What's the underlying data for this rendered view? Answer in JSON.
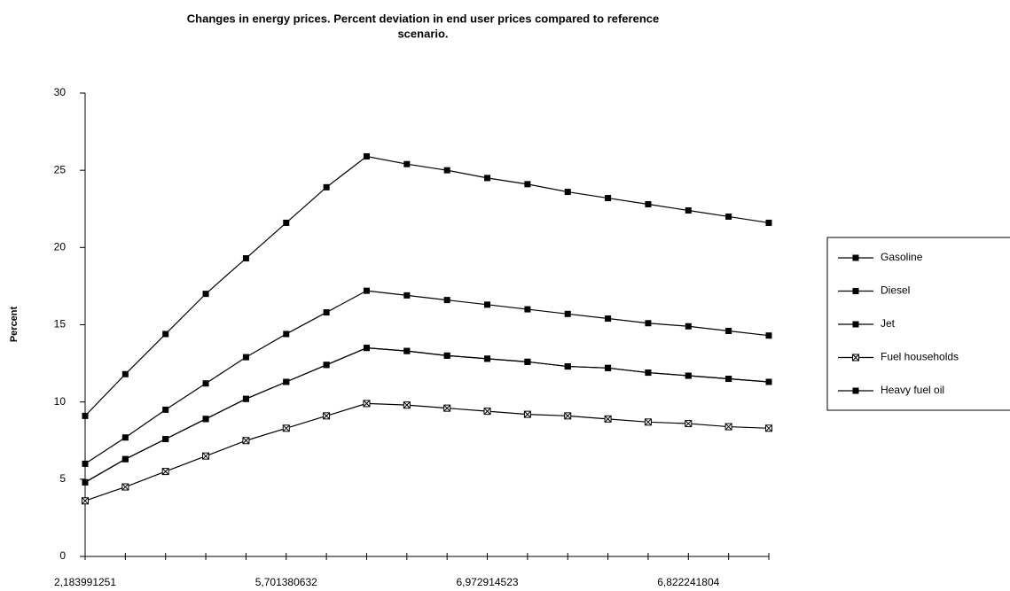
{
  "chart_data": {
    "type": "line",
    "title": [
      "Changes in energy prices. Percent deviation in end user prices compared to reference",
      "scenario."
    ],
    "y_label": "Percent",
    "categories": [
      "2,183991251",
      null,
      null,
      null,
      null,
      "5,701380632",
      null,
      null,
      null,
      null,
      "6,972914523",
      null,
      null,
      null,
      null,
      "6,822241804",
      null,
      null
    ],
    "ylim": [
      0,
      30
    ],
    "yticks": [
      0,
      5,
      10,
      15,
      20,
      25,
      30
    ],
    "grid": false,
    "series": [
      {
        "name": "Gasoline",
        "color": "#000000",
        "marker": "square",
        "values": [
          9.1,
          11.8,
          14.4,
          17.0,
          19.3,
          21.6,
          23.9,
          25.9,
          25.4,
          25.0,
          24.5,
          24.1,
          23.6,
          23.2,
          22.8,
          22.4,
          22.0,
          21.6
        ]
      },
      {
        "name": "Diesel",
        "color": "#000000",
        "marker": "square",
        "values": [
          6.0,
          7.7,
          9.5,
          11.2,
          12.9,
          14.4,
          15.8,
          17.2,
          16.9,
          16.6,
          16.3,
          16.0,
          15.7,
          15.4,
          15.1,
          14.9,
          14.6,
          14.3
        ]
      },
      {
        "name": "Jet",
        "color": "#000000",
        "marker": "square",
        "values": [
          4.8,
          6.3,
          7.6,
          8.9,
          10.2,
          11.3,
          12.4,
          13.5,
          13.3,
          13.0,
          12.8,
          12.6,
          12.3,
          12.2,
          11.9,
          11.7,
          11.5,
          11.3
        ]
      },
      {
        "name": "Fuel households",
        "color": "#000000",
        "marker": "crossed-square",
        "values": [
          3.6,
          4.5,
          5.5,
          6.5,
          7.5,
          8.3,
          9.1,
          9.9,
          9.8,
          9.6,
          9.4,
          9.2,
          9.1,
          8.9,
          8.7,
          8.6,
          8.4,
          8.3
        ]
      },
      {
        "name": "Heavy fuel oil",
        "color": "#000000",
        "marker": "square",
        "values": [
          4.8,
          6.3,
          7.6,
          8.9,
          10.2,
          11.3,
          12.4,
          13.5,
          13.3,
          13.0,
          12.8,
          12.6,
          12.3,
          12.2,
          11.9,
          11.7,
          11.5,
          11.3
        ]
      }
    ],
    "legend": "right"
  }
}
